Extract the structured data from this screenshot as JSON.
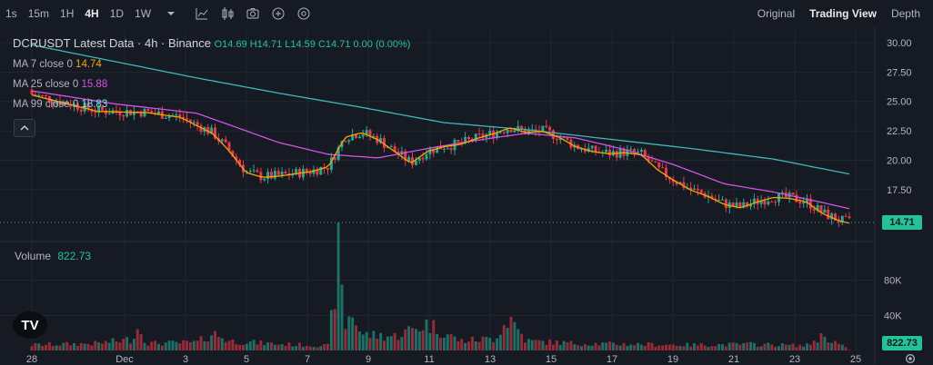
{
  "toolbar": {
    "timeframes": [
      "1s",
      "15m",
      "1H",
      "4H",
      "1D",
      "1W"
    ],
    "active_timeframe": "4H",
    "icons": [
      "chevron-down-icon",
      "indicator-line-icon",
      "candles-icon",
      "camera-icon",
      "add-circle-icon",
      "settings-circle-icon"
    ],
    "views": [
      "Original",
      "Trading View",
      "Depth"
    ],
    "active_view": "Trading View"
  },
  "legend": {
    "title": "DCRUSDT Latest Data · 4h · Binance",
    "ohlc": "O14.69 H14.71 L14.59 C14.71 0.00 (0.00%)",
    "ma7": {
      "label": "MA 7 close 0",
      "value": "14.74",
      "color": "#f7a600"
    },
    "ma25": {
      "label": "MA 25 close 0",
      "value": "15.88",
      "color": "#d454e6"
    },
    "ma99": {
      "label": "MA 99 close 0",
      "value": "18.83",
      "color": "#7fe3e8"
    }
  },
  "volume": {
    "label": "Volume",
    "value": "822.73"
  },
  "colors": {
    "up": "#22ab94",
    "down": "#f23645",
    "ma7": "#f7a600",
    "ma25": "#d454e6",
    "ma99": "#3fb8b8",
    "background": "#161a23"
  },
  "chart_data": {
    "type": "candlestick",
    "symbol": "DCRUSDT",
    "interval": "4h",
    "exchange": "Binance",
    "price_axis_ticks": [
      "30.00",
      "27.50",
      "25.00",
      "22.50",
      "20.00",
      "17.50"
    ],
    "ylim": [
      13.4,
      31.0
    ],
    "volume_axis_ticks": [
      "80K",
      "40K"
    ],
    "volume_ylim": [
      0,
      120000
    ],
    "x_tick_labels": [
      "28",
      "Dec",
      "3",
      "5",
      "7",
      "9",
      "11",
      "13",
      "15",
      "17",
      "19",
      "21",
      "23",
      "25"
    ],
    "last_price": "14.71",
    "last_volume": "822.73",
    "close_path": [
      [
        0,
        25.6
      ],
      [
        4,
        24.2
      ],
      [
        7,
        24.1
      ],
      [
        9,
        23.7
      ],
      [
        11,
        22.3
      ],
      [
        12,
        20.8
      ],
      [
        13,
        19.0
      ],
      [
        14,
        18.6
      ],
      [
        15,
        18.7
      ],
      [
        16,
        18.9
      ],
      [
        17,
        19.1
      ],
      [
        18,
        19.5
      ],
      [
        19,
        22.0
      ],
      [
        20,
        22.4
      ],
      [
        21,
        21.8
      ],
      [
        22,
        20.8
      ],
      [
        23,
        19.8
      ],
      [
        24,
        20.8
      ],
      [
        25,
        21.2
      ],
      [
        26,
        21.4
      ],
      [
        27,
        21.9
      ],
      [
        28,
        22.3
      ],
      [
        29,
        22.8
      ],
      [
        30,
        22.4
      ],
      [
        31,
        22.5
      ],
      [
        32,
        22.0
      ],
      [
        33,
        21.2
      ],
      [
        34,
        20.8
      ],
      [
        35,
        20.6
      ],
      [
        36,
        20.7
      ],
      [
        37,
        20.5
      ],
      [
        38,
        19.2
      ],
      [
        39,
        18.3
      ],
      [
        40,
        17.5
      ],
      [
        41,
        17.0
      ],
      [
        42,
        16.3
      ],
      [
        43,
        16.0
      ],
      [
        44,
        16.5
      ],
      [
        45,
        16.9
      ],
      [
        46,
        16.8
      ],
      [
        47,
        16.5
      ],
      [
        48,
        15.5
      ],
      [
        49,
        14.9
      ],
      [
        49.6,
        14.71
      ]
    ],
    "ma99_path": [
      [
        0,
        29.8
      ],
      [
        5,
        28.4
      ],
      [
        10,
        27.0
      ],
      [
        15,
        25.7
      ],
      [
        20,
        24.5
      ],
      [
        25,
        23.2
      ],
      [
        30,
        22.6
      ],
      [
        35,
        21.8
      ],
      [
        40,
        21.0
      ],
      [
        45,
        20.1
      ],
      [
        49.6,
        18.83
      ]
    ],
    "ma25_path": [
      [
        0,
        25.9
      ],
      [
        5,
        24.8
      ],
      [
        10,
        24.0
      ],
      [
        12,
        23.0
      ],
      [
        15,
        21.5
      ],
      [
        18,
        20.5
      ],
      [
        21,
        20.2
      ],
      [
        24,
        21.0
      ],
      [
        27,
        21.7
      ],
      [
        30,
        22.3
      ],
      [
        33,
        21.9
      ],
      [
        36,
        20.9
      ],
      [
        39,
        19.6
      ],
      [
        42,
        18.0
      ],
      [
        45,
        17.3
      ],
      [
        48,
        16.4
      ],
      [
        49.6,
        15.88
      ]
    ],
    "volume_profile": [
      [
        0,
        7000
      ],
      [
        4,
        9000
      ],
      [
        6,
        14000
      ],
      [
        6.5,
        30000
      ],
      [
        7,
        9000
      ],
      [
        10,
        10000
      ],
      [
        11,
        22000
      ],
      [
        12,
        12000
      ],
      [
        15,
        8000
      ],
      [
        18,
        6000
      ],
      [
        18.6,
        120000
      ],
      [
        19,
        30000
      ],
      [
        19.4,
        50000
      ],
      [
        20,
        20000
      ],
      [
        22,
        18000
      ],
      [
        24,
        34000
      ],
      [
        26,
        12000
      ],
      [
        28,
        15000
      ],
      [
        29,
        42000
      ],
      [
        30,
        12000
      ],
      [
        33,
        9000
      ],
      [
        36,
        8000
      ],
      [
        40,
        7000
      ],
      [
        44,
        8000
      ],
      [
        47,
        6000
      ],
      [
        48,
        19000
      ],
      [
        49.6,
        823
      ]
    ]
  }
}
